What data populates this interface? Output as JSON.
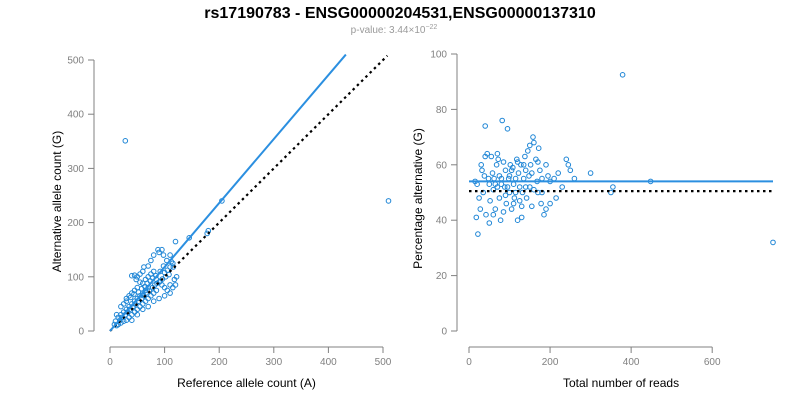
{
  "header": {
    "title": "rs17190783 - ENSG00000204531,ENSG00000137310",
    "pvalue_prefix": "p-value: 3.44×10",
    "pvalue_exp": "−22"
  },
  "chart_data": [
    {
      "type": "scatter",
      "xlabel": "Reference allele count (A)",
      "ylabel": "Alternative allele count (G)",
      "xlim": [
        0,
        500
      ],
      "ylim": [
        0,
        500
      ],
      "xticks": [
        0,
        100,
        200,
        300,
        400,
        500
      ],
      "yticks": [
        0,
        100,
        200,
        300,
        400,
        500
      ],
      "fit_line": {
        "from": [
          0,
          0
        ],
        "to": [
          432,
          510
        ]
      },
      "reference_line": {
        "from": [
          0,
          0
        ],
        "to": [
          508,
          508
        ]
      },
      "points": [
        [
          28,
          351
        ],
        [
          510,
          240
        ],
        [
          205,
          240
        ],
        [
          180,
          185
        ],
        [
          178,
          180
        ],
        [
          145,
          172
        ],
        [
          120,
          165
        ],
        [
          115,
          125
        ],
        [
          110,
          118
        ],
        [
          105,
          112
        ],
        [
          100,
          108
        ],
        [
          110,
          140
        ],
        [
          95,
          150
        ],
        [
          88,
          150
        ],
        [
          90,
          145
        ],
        [
          98,
          140
        ],
        [
          80,
          140
        ],
        [
          75,
          130
        ],
        [
          70,
          120
        ],
        [
          62,
          118
        ],
        [
          60,
          110
        ],
        [
          55,
          105
        ],
        [
          45,
          103
        ],
        [
          40,
          102
        ],
        [
          50,
          100
        ],
        [
          48,
          95
        ],
        [
          55,
          90
        ],
        [
          60,
          88
        ],
        [
          65,
          95
        ],
        [
          70,
          100
        ],
        [
          75,
          105
        ],
        [
          80,
          110
        ],
        [
          85,
          95
        ],
        [
          90,
          90
        ],
        [
          95,
          85
        ],
        [
          100,
          80
        ],
        [
          105,
          75
        ],
        [
          110,
          70
        ],
        [
          115,
          80
        ],
        [
          120,
          85
        ],
        [
          85,
          75
        ],
        [
          80,
          70
        ],
        [
          75,
          65
        ],
        [
          70,
          60
        ],
        [
          65,
          55
        ],
        [
          60,
          50
        ],
        [
          55,
          45
        ],
        [
          50,
          40
        ],
        [
          45,
          35
        ],
        [
          40,
          30
        ],
        [
          35,
          25
        ],
        [
          30,
          20
        ],
        [
          25,
          18
        ],
        [
          20,
          15
        ],
        [
          15,
          12
        ],
        [
          12,
          10
        ],
        [
          18,
          20
        ],
        [
          22,
          25
        ],
        [
          28,
          30
        ],
        [
          32,
          35
        ],
        [
          36,
          40
        ],
        [
          42,
          45
        ],
        [
          46,
          50
        ],
        [
          52,
          55
        ],
        [
          58,
          60
        ],
        [
          62,
          65
        ],
        [
          66,
          70
        ],
        [
          72,
          75
        ],
        [
          78,
          80
        ],
        [
          82,
          85
        ],
        [
          86,
          88
        ],
        [
          92,
          92
        ],
        [
          96,
          96
        ],
        [
          102,
          100
        ],
        [
          108,
          104
        ],
        [
          20,
          30
        ],
        [
          25,
          35
        ],
        [
          30,
          40
        ],
        [
          35,
          45
        ],
        [
          40,
          50
        ],
        [
          45,
          55
        ],
        [
          50,
          60
        ],
        [
          55,
          65
        ],
        [
          60,
          70
        ],
        [
          65,
          75
        ],
        [
          70,
          80
        ],
        [
          30,
          60
        ],
        [
          35,
          65
        ],
        [
          40,
          70
        ],
        [
          45,
          75
        ],
        [
          50,
          80
        ],
        [
          40,
          20
        ],
        [
          50,
          30
        ],
        [
          60,
          40
        ],
        [
          70,
          45
        ],
        [
          80,
          55
        ],
        [
          90,
          60
        ],
        [
          100,
          65
        ],
        [
          110,
          85
        ],
        [
          118,
          95
        ],
        [
          122,
          100
        ],
        [
          15,
          25
        ],
        [
          10,
          18
        ],
        [
          8,
          12
        ],
        [
          12,
          30
        ],
        [
          25,
          50
        ],
        [
          20,
          45
        ],
        [
          30,
          55
        ],
        [
          38,
          62
        ],
        [
          44,
          68
        ],
        [
          52,
          72
        ],
        [
          58,
          78
        ],
        [
          64,
          82
        ],
        [
          68,
          88
        ],
        [
          74,
          92
        ],
        [
          78,
          98
        ],
        [
          84,
          102
        ],
        [
          92,
          110
        ],
        [
          98,
          120
        ],
        [
          104,
          130
        ],
        [
          112,
          128
        ],
        [
          116,
          118
        ]
      ]
    },
    {
      "type": "scatter",
      "xlabel": "Total number of reads",
      "ylabel": "Percentage alternative (G)",
      "xlim": [
        0,
        750
      ],
      "ylim": [
        0,
        100
      ],
      "xticks": [
        0,
        200,
        400,
        600
      ],
      "yticks": [
        0,
        20,
        40,
        60,
        80,
        100
      ],
      "fit_line": {
        "from": [
          0,
          54
        ],
        "to": [
          750,
          54
        ]
      },
      "reference_line": {
        "from": [
          0,
          50.5
        ],
        "to": [
          750,
          50.5
        ]
      },
      "points": [
        [
          379,
          92.5
        ],
        [
          750,
          32
        ],
        [
          448,
          54
        ],
        [
          355,
          52
        ],
        [
          350,
          50
        ],
        [
          300,
          57
        ],
        [
          260,
          55
        ],
        [
          245,
          60
        ],
        [
          250,
          58
        ],
        [
          240,
          62
        ],
        [
          230,
          52
        ],
        [
          220,
          57
        ],
        [
          215,
          48
        ],
        [
          200,
          54
        ],
        [
          195,
          56
        ],
        [
          190,
          60
        ],
        [
          185,
          42
        ],
        [
          180,
          50
        ],
        [
          178,
          46
        ],
        [
          175,
          58
        ],
        [
          172,
          66
        ],
        [
          170,
          50
        ],
        [
          168,
          54
        ],
        [
          165,
          62
        ],
        [
          160,
          68
        ],
        [
          158,
          70
        ],
        [
          155,
          45
        ],
        [
          152,
          60
        ],
        [
          150,
          52
        ],
        [
          148,
          56
        ],
        [
          145,
          65
        ],
        [
          142,
          48
        ],
        [
          140,
          58
        ],
        [
          138,
          63
        ],
        [
          135,
          55
        ],
        [
          132,
          50
        ],
        [
          130,
          45
        ],
        [
          128,
          60
        ],
        [
          125,
          52
        ],
        [
          122,
          57
        ],
        [
          120,
          40
        ],
        [
          118,
          62
        ],
        [
          115,
          55
        ],
        [
          112,
          48
        ],
        [
          110,
          53
        ],
        [
          108,
          59
        ],
        [
          105,
          44
        ],
        [
          102,
          60
        ],
        [
          100,
          50
        ],
        [
          98,
          55
        ],
        [
          95,
          73
        ],
        [
          92,
          46
        ],
        [
          90,
          58
        ],
        [
          88,
          52
        ],
        [
          85,
          43
        ],
        [
          82,
          76
        ],
        [
          80,
          55
        ],
        [
          78,
          40
        ],
        [
          75,
          48
        ],
        [
          72,
          62
        ],
        [
          70,
          52
        ],
        [
          68,
          60
        ],
        [
          65,
          44
        ],
        [
          62,
          55
        ],
        [
          60,
          51
        ],
        [
          58,
          57
        ],
        [
          55,
          63
        ],
        [
          52,
          47
        ],
        [
          50,
          53
        ],
        [
          48,
          55
        ],
        [
          45,
          64
        ],
        [
          42,
          42
        ],
        [
          40,
          74
        ],
        [
          38,
          56
        ],
        [
          35,
          50
        ],
        [
          32,
          58
        ],
        [
          30,
          60
        ],
        [
          28,
          44
        ],
        [
          25,
          48
        ],
        [
          22,
          35
        ],
        [
          20,
          53
        ],
        [
          18,
          41
        ],
        [
          15,
          54
        ],
        [
          60,
          42
        ],
        [
          70,
          64
        ],
        [
          110,
          46
        ],
        [
          130,
          41
        ],
        [
          150,
          67
        ],
        [
          200,
          46
        ],
        [
          180,
          55
        ],
        [
          160,
          51
        ],
        [
          140,
          52
        ],
        [
          120,
          61
        ],
        [
          100,
          56
        ],
        [
          90,
          49
        ],
        [
          80,
          53
        ],
        [
          50,
          39
        ],
        [
          40,
          63
        ],
        [
          210,
          55
        ],
        [
          190,
          44
        ],
        [
          170,
          61
        ],
        [
          155,
          57
        ],
        [
          135,
          60
        ],
        [
          115,
          50
        ],
        [
          125,
          47
        ],
        [
          105,
          58
        ],
        [
          95,
          52
        ],
        [
          85,
          61
        ],
        [
          75,
          56
        ],
        [
          65,
          53
        ]
      ]
    }
  ]
}
